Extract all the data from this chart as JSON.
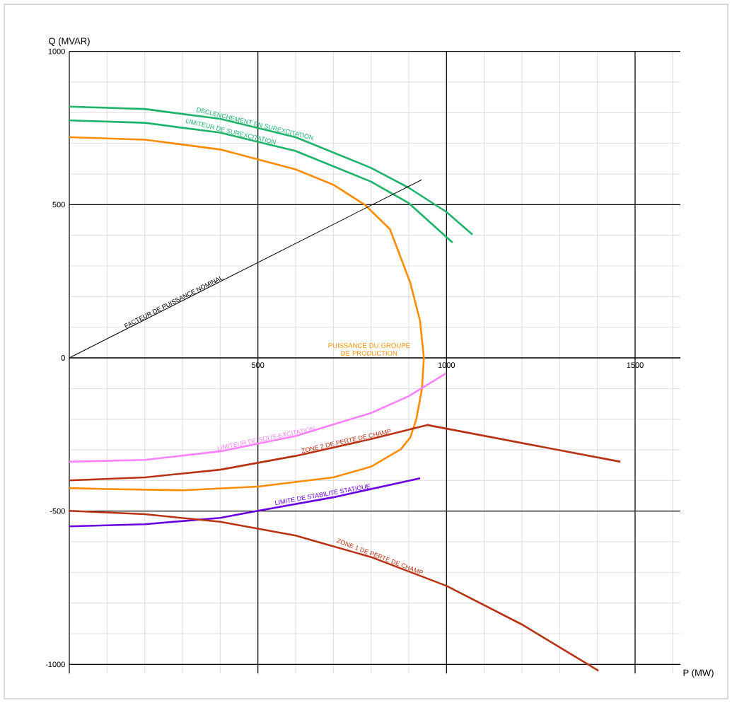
{
  "chart_data": {
    "type": "line",
    "xlabel": "P (MW)",
    "ylabel": "Q (MVAR)",
    "xlim": [
      0,
      1620
    ],
    "ylim": [
      -1030,
      1000
    ],
    "xticks": [
      {
        "value": 100,
        "label": null
      },
      {
        "value": 200,
        "label": null
      },
      {
        "value": 300,
        "label": null
      },
      {
        "value": 400,
        "label": null
      },
      500,
      {
        "value": 600,
        "label": null
      },
      {
        "value": 700,
        "label": null
      },
      {
        "value": 800,
        "label": null
      },
      {
        "value": 900,
        "label": null
      },
      1000,
      {
        "value": 1100,
        "label": null
      },
      {
        "value": 1200,
        "label": null
      },
      {
        "value": 1300,
        "label": null
      },
      {
        "value": 1400,
        "label": null
      },
      1500,
      {
        "value": 1600,
        "label": null
      }
    ],
    "yticks": [
      -1000,
      {
        "value": -900,
        "label": null
      },
      {
        "value": -800,
        "label": null
      },
      {
        "value": -700,
        "label": null
      },
      {
        "value": -600,
        "label": null
      },
      -500,
      {
        "value": -400,
        "label": null
      },
      {
        "value": -300,
        "label": null
      },
      {
        "value": -200,
        "label": null
      },
      {
        "value": -100,
        "label": null
      },
      0,
      {
        "value": 100,
        "label": null
      },
      {
        "value": 200,
        "label": null
      },
      {
        "value": 300,
        "label": null
      },
      {
        "value": 400,
        "label": null
      },
      500,
      {
        "value": 600,
        "label": null
      },
      {
        "value": 700,
        "label": null
      },
      {
        "value": 800,
        "label": null
      },
      {
        "value": 900,
        "label": null
      },
      1000
    ],
    "grid": true,
    "marker": "none",
    "line_style": "solid",
    "series": [
      {
        "name": "DÉCLENCHEMENT EN SUREXCITATION",
        "color": "#1db36a",
        "x": [
          0,
          200,
          400,
          600,
          800,
          900,
          1000,
          1069
        ],
        "values": [
          820,
          812,
          780,
          720,
          620,
          555,
          476,
          402
        ]
      },
      {
        "name": "LIMITEUR DE SUREXCITATION",
        "color": "#1db36a",
        "x": [
          0,
          200,
          400,
          600,
          800,
          900,
          1016
        ],
        "values": [
          775,
          767,
          735,
          675,
          575,
          505,
          376
        ]
      },
      {
        "name": "PUISSANCE DU GROUPE DE PRODUCTION",
        "color": "#ff8c00",
        "x": [
          0,
          200,
          400,
          600,
          700,
          784,
          850,
          904,
          930,
          940,
          935,
          920,
          904,
          879,
          800,
          700,
          500,
          300,
          100,
          0
        ],
        "values": [
          720,
          712,
          680,
          615,
          565,
          499,
          420,
          245,
          120,
          0,
          -100,
          -200,
          -260,
          -298,
          -355,
          -390,
          -420,
          -432,
          -428,
          -425
        ]
      },
      {
        "name": "FACTEUR DE PUISSANCE NOMINAL",
        "color": "#000000",
        "x": [
          0,
          934
        ],
        "values": [
          0,
          581
        ]
      },
      {
        "name": "LIMITEUR DE SOUS-EXCITATION",
        "color": "#ff80ff",
        "x": [
          0,
          200,
          400,
          600,
          800,
          900,
          998
        ],
        "values": [
          -339,
          -333,
          -305,
          -255,
          -180,
          -125,
          -51
        ]
      },
      {
        "name": "ZONE 2 DE PERTE DE CHAMP",
        "color": "#b83214",
        "x": [
          0,
          200,
          400,
          600,
          800,
          949,
          1461
        ],
        "values": [
          -400,
          -390,
          -365,
          -320,
          -265,
          -219,
          -339
        ]
      },
      {
        "name": "LIMITE DE STABILITÉ STATIQUE",
        "color": "#6a00e0",
        "x": [
          0,
          200,
          400,
          500,
          700,
          930
        ],
        "values": [
          -550,
          -543,
          -522,
          -499,
          -455,
          -393
        ]
      },
      {
        "name": "ZONE 1 DE PERTE DE CHAMP",
        "color": "#b83214",
        "x": [
          0,
          200,
          400,
          600,
          800,
          1000,
          1200,
          1403
        ],
        "values": [
          -499,
          -510,
          -535,
          -580,
          -650,
          -744,
          -870,
          -1021
        ]
      }
    ]
  }
}
